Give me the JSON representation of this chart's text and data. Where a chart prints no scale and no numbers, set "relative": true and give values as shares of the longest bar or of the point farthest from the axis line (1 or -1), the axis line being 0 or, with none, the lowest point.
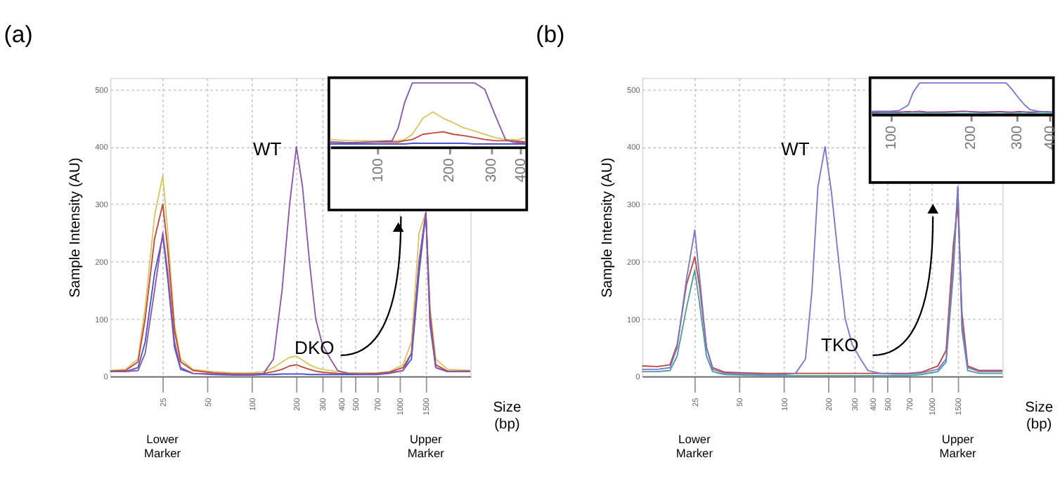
{
  "chart_data": [
    {
      "type": "line",
      "title": "(a)",
      "xlabel": "Size (bp)",
      "ylabel": "Sample Intensity (AU)",
      "grid": true,
      "legend": false,
      "log": "x",
      "x": [
        11,
        14,
        17,
        19,
        22,
        25,
        27,
        30,
        33,
        40,
        55,
        75,
        100,
        120,
        140,
        160,
        180,
        200,
        220,
        245,
        270,
        300,
        340,
        380,
        450,
        550,
        700,
        850,
        1050,
        1200,
        1350,
        1500,
        1600,
        1750,
        2100,
        3000
      ],
      "xlim": [
        11,
        3000
      ],
      "ylim": [
        0,
        520
      ],
      "xticks": [
        25,
        50,
        100,
        200,
        300,
        400,
        500,
        700,
        1000,
        1500
      ],
      "yticks": [
        0,
        100,
        200,
        300,
        400,
        500
      ],
      "series": [
        {
          "color": "#d6c85f",
          "values": [
            10,
            12,
            30,
            120,
            280,
            350,
            250,
            90,
            30,
            12,
            8,
            6,
            6,
            8,
            15,
            25,
            33,
            35,
            28,
            20,
            15,
            12,
            10,
            8,
            6,
            6,
            6,
            8,
            20,
            60,
            250,
            285,
            120,
            30,
            12,
            10
          ]
        },
        {
          "color": "#c4453c",
          "values": [
            9,
            10,
            25,
            100,
            240,
            300,
            220,
            80,
            25,
            10,
            6,
            4,
            4,
            5,
            8,
            12,
            18,
            20,
            16,
            12,
            9,
            7,
            6,
            5,
            4,
            4,
            5,
            7,
            15,
            40,
            200,
            285,
            110,
            20,
            9,
            9
          ]
        },
        {
          "color": "#4a56c8",
          "values": [
            8,
            8,
            15,
            60,
            180,
            245,
            170,
            50,
            12,
            5,
            3,
            2,
            2,
            3,
            3,
            4,
            4,
            4,
            4,
            3,
            3,
            3,
            3,
            3,
            3,
            3,
            3,
            5,
            10,
            30,
            180,
            285,
            90,
            15,
            8,
            8
          ]
        },
        {
          "color": "#8b57a8",
          "values": [
            8,
            8,
            10,
            40,
            150,
            250,
            180,
            60,
            15,
            5,
            4,
            3,
            3,
            5,
            30,
            150,
            300,
            400,
            330,
            200,
            100,
            55,
            30,
            10,
            5,
            4,
            4,
            6,
            10,
            40,
            200,
            285,
            100,
            15,
            8,
            8
          ]
        }
      ],
      "annotations": [
        "WT",
        "DKO",
        "Lower Marker",
        "Upper Marker"
      ]
    },
    {
      "type": "line",
      "relative": true,
      "tick_labels": "x",
      "legend": false,
      "log": "x",
      "x": [
        63,
        77,
        94,
        115,
        122,
        130,
        140,
        155,
        171,
        189,
        209,
        231,
        257,
        283,
        313,
        346,
        370,
        395,
        420
      ],
      "xlim": [
        63,
        420
      ],
      "xticks": [
        100,
        200,
        300,
        400
      ],
      "series": [
        {
          "color": "#d6c85f",
          "values": [
            0.12,
            0.1,
            0.1,
            0.1,
            0.1,
            0.12,
            0.2,
            0.45,
            0.55,
            0.45,
            0.38,
            0.3,
            0.25,
            0.2,
            0.15,
            0.12,
            0.12,
            0.12,
            0.15
          ]
        },
        {
          "color": "#c4453c",
          "values": [
            0.08,
            0.07,
            0.08,
            0.08,
            0.08,
            0.1,
            0.12,
            0.2,
            0.22,
            0.24,
            0.2,
            0.18,
            0.15,
            0.12,
            0.1,
            0.1,
            0.1,
            0.09,
            0.08
          ]
        },
        {
          "color": "#4a56c8",
          "values": [
            0.05,
            0.05,
            0.05,
            0.05,
            0.05,
            0.05,
            0.06,
            0.06,
            0.06,
            0.06,
            0.06,
            0.06,
            0.05,
            0.05,
            0.05,
            0.05,
            0.05,
            0.05,
            0.05
          ]
        },
        {
          "color": "#8b57a8",
          "values": [
            0.08,
            0.07,
            0.08,
            0.1,
            0.3,
            0.7,
            1,
            1,
            1,
            1,
            1,
            1,
            1,
            0.9,
            0.5,
            0.12,
            0.08,
            0.07,
            0.06
          ]
        }
      ]
    },
    {
      "type": "line",
      "title": "(b)",
      "xlabel": "Size (bp)",
      "ylabel": "Sample Intensity (AU)",
      "grid": true,
      "legend": false,
      "log": "x",
      "x": [
        11,
        14,
        17,
        19,
        22,
        25,
        27,
        30,
        33,
        40,
        55,
        75,
        100,
        120,
        140,
        155,
        170,
        190,
        210,
        235,
        260,
        290,
        330,
        370,
        450,
        550,
        700,
        850,
        1100,
        1250,
        1400,
        1500,
        1600,
        1750,
        2100,
        3000
      ],
      "xlim": [
        11,
        3000
      ],
      "ylim": [
        0,
        520
      ],
      "xticks": [
        25,
        50,
        100,
        200,
        300,
        400,
        500,
        700,
        1000,
        1500
      ],
      "yticks": [
        0,
        100,
        200,
        300,
        400,
        500
      ],
      "series": [
        {
          "color": "#4a9e9a",
          "values": [
            8,
            8,
            10,
            35,
            120,
            185,
            125,
            35,
            8,
            3,
            2,
            1,
            1,
            1,
            1,
            1,
            1,
            1,
            1,
            1,
            1,
            1,
            1,
            1,
            1,
            1,
            1,
            3,
            8,
            25,
            180,
            330,
            80,
            10,
            5,
            5
          ]
        },
        {
          "color": "#b8463f",
          "values": [
            18,
            17,
            20,
            55,
            160,
            208,
            155,
            50,
            15,
            7,
            6,
            5,
            5,
            5,
            5,
            5,
            5,
            5,
            5,
            5,
            5,
            5,
            5,
            5,
            5,
            5,
            5,
            7,
            18,
            45,
            230,
            300,
            110,
            18,
            10,
            10
          ]
        },
        {
          "color": "#7b78cc",
          "values": [
            12,
            12,
            15,
            50,
            170,
            255,
            170,
            50,
            12,
            5,
            4,
            3,
            3,
            5,
            30,
            150,
            330,
            400,
            320,
            200,
            100,
            55,
            30,
            10,
            5,
            4,
            4,
            6,
            12,
            30,
            200,
            330,
            90,
            15,
            8,
            8
          ]
        }
      ],
      "annotations": [
        "WT",
        "TKO",
        "Lower Marker",
        "Upper Marker"
      ]
    },
    {
      "type": "line",
      "relative": true,
      "tick_labels": "x",
      "legend": false,
      "log": "x",
      "x": [
        84,
        99,
        107,
        116,
        121,
        128,
        136,
        160,
        188,
        221,
        260,
        273,
        287,
        306,
        321,
        337,
        360,
        390,
        408
      ],
      "xlim": [
        84,
        408
      ],
      "xticks": [
        100,
        200,
        300,
        400
      ],
      "series": [
        {
          "color": "#4a9e9a",
          "values": [
            0.03,
            0.04,
            0.03,
            0.04,
            0.03,
            0.05,
            0.03,
            0.04,
            0.03,
            0.04,
            0.03,
            0.04,
            0.03,
            0.04,
            0.03,
            0.04,
            0.03,
            0.04,
            0.03
          ]
        },
        {
          "color": "#8b3f8f",
          "values": [
            0.06,
            0.08,
            0.07,
            0.09,
            0.08,
            0.1,
            0.07,
            0.08,
            0.1,
            0.07,
            0.09,
            0.08,
            0.07,
            0.09,
            0.08,
            0.07,
            0.08,
            0.09,
            0.07
          ]
        },
        {
          "color": "#7b78cc",
          "values": [
            0.1,
            0.1,
            0.12,
            0.3,
            0.7,
            1,
            1,
            1,
            1,
            1,
            1,
            1,
            0.8,
            0.5,
            0.3,
            0.15,
            0.1,
            0.08,
            0.08
          ]
        }
      ]
    }
  ]
}
